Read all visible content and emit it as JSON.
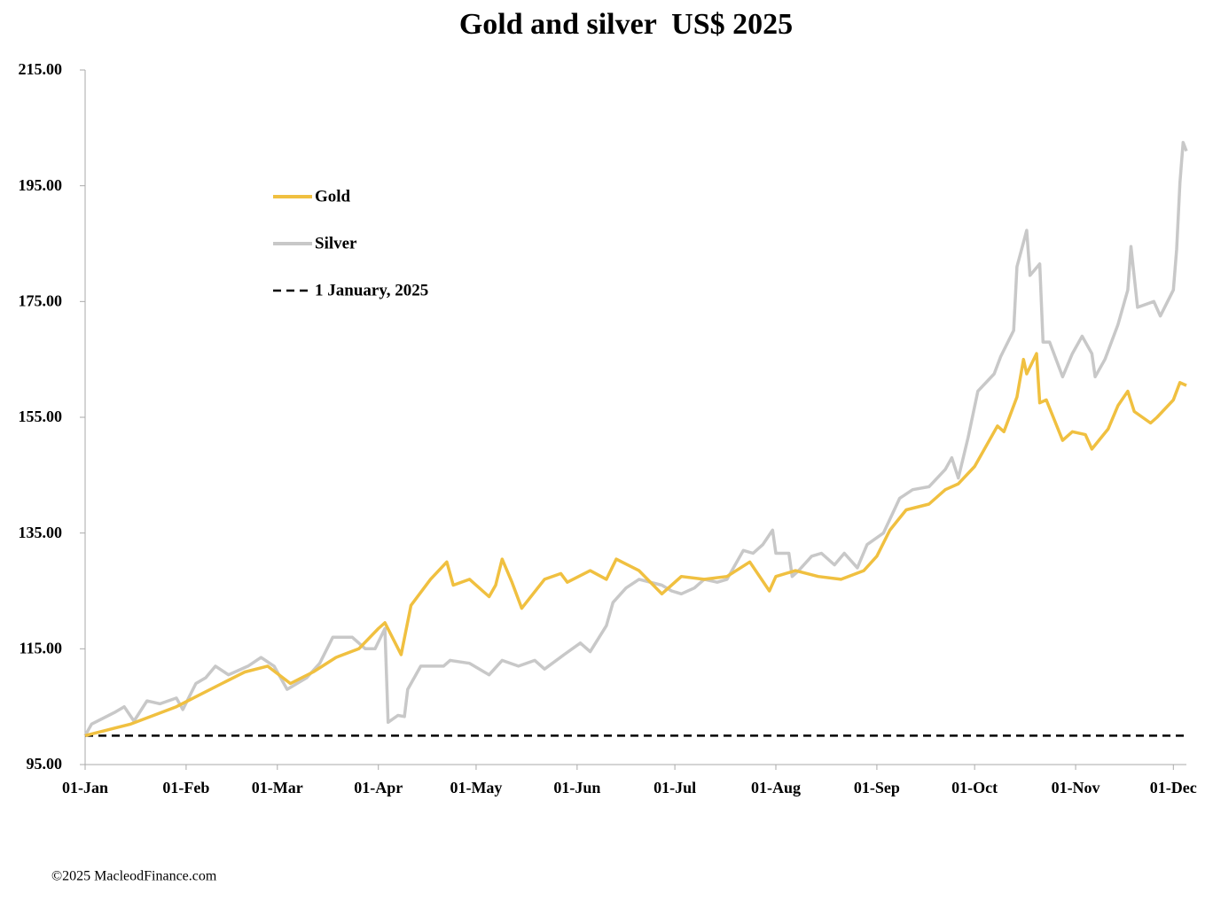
{
  "chart_data": {
    "type": "line",
    "title": "Gold and silver  US$ 2025",
    "footer": "©2025 MacleodFinance.com",
    "xlim": [
      "01-Jan",
      "05-Dec"
    ],
    "xticks": [
      "01-Jan",
      "01-Feb",
      "01-Mar",
      "01-Apr",
      "01-May",
      "01-Jun",
      "01-Jul",
      "01-Aug",
      "01-Sep",
      "01-Oct",
      "01-Nov",
      "01-Dec"
    ],
    "ylim": [
      95,
      215
    ],
    "yticks": [
      {
        "value": 95,
        "label": "95.00"
      },
      {
        "value": 115,
        "label": "115.00"
      },
      {
        "value": 135,
        "label": "135.00"
      },
      {
        "value": 155,
        "label": "155.00"
      },
      {
        "value": 175,
        "label": "175.00"
      },
      {
        "value": 195,
        "label": "195.00"
      },
      {
        "value": 215,
        "label": "215.00"
      }
    ],
    "reference_line": {
      "name": "1 January, 2025",
      "value": 100,
      "color": "#000000"
    },
    "series": [
      {
        "name": "Gold",
        "color": "#f0c040",
        "x": [
          "01-Jan",
          "08-Jan",
          "15-Jan",
          "22-Jan",
          "29-Jan",
          "05-Feb",
          "12-Feb",
          "19-Feb",
          "26-Feb",
          "05-Mar",
          "12-Mar",
          "19-Mar",
          "26-Mar",
          "01-Apr",
          "03-Apr",
          "08-Apr",
          "11-Apr",
          "17-Apr",
          "22-Apr",
          "24-Apr",
          "29-Apr",
          "05-May",
          "07-May",
          "09-May",
          "12-May",
          "15-May",
          "22-May",
          "27-May",
          "29-May",
          "05-Jun",
          "10-Jun",
          "13-Jun",
          "20-Jun",
          "27-Jun",
          "03-Jul",
          "10-Jul",
          "17-Jul",
          "24-Jul",
          "30-Jul",
          "01-Aug",
          "07-Aug",
          "14-Aug",
          "21-Aug",
          "28-Aug",
          "01-Sep",
          "05-Sep",
          "10-Sep",
          "17-Sep",
          "22-Sep",
          "26-Sep",
          "01-Oct",
          "08-Oct",
          "10-Oct",
          "14-Oct",
          "16-Oct",
          "17-Oct",
          "20-Oct",
          "21-Oct",
          "23-Oct",
          "28-Oct",
          "31-Oct",
          "04-Nov",
          "06-Nov",
          "11-Nov",
          "14-Nov",
          "17-Nov",
          "19-Nov",
          "24-Nov",
          "26-Nov",
          "01-Dec",
          "03-Dec",
          "05-Dec"
        ],
        "values": [
          100,
          101,
          102,
          103.5,
          105,
          107,
          109,
          111,
          112,
          109,
          111,
          113.5,
          115,
          118.5,
          119.5,
          114,
          122.5,
          127,
          130,
          126,
          127,
          124,
          126,
          130.5,
          126.5,
          122,
          127,
          128,
          126.5,
          128.5,
          127,
          130.5,
          128.5,
          124.5,
          127.5,
          127,
          127.5,
          130,
          125,
          127.5,
          128.5,
          127.5,
          127,
          128.5,
          131,
          135.5,
          139,
          140,
          142.5,
          143.5,
          146.5,
          153.5,
          152.5,
          158.5,
          165,
          162.5,
          166,
          157.5,
          158,
          151,
          152.5,
          152,
          149.5,
          153,
          157,
          159.5,
          156,
          154,
          155,
          158,
          161,
          160.5
        ]
      },
      {
        "name": "Silver",
        "color": "#c8c8c8",
        "x": [
          "01-Jan",
          "03-Jan",
          "10-Jan",
          "13-Jan",
          "16-Jan",
          "20-Jan",
          "24-Jan",
          "29-Jan",
          "31-Jan",
          "04-Feb",
          "07-Feb",
          "10-Feb",
          "14-Feb",
          "20-Feb",
          "24-Feb",
          "28-Feb",
          "04-Mar",
          "10-Mar",
          "14-Mar",
          "18-Mar",
          "24-Mar",
          "28-Mar",
          "31-Mar",
          "03-Apr",
          "04-Apr",
          "07-Apr",
          "09-Apr",
          "10-Apr",
          "14-Apr",
          "21-Apr",
          "23-Apr",
          "29-Apr",
          "05-May",
          "09-May",
          "14-May",
          "19-May",
          "22-May",
          "28-May",
          "02-Jun",
          "05-Jun",
          "10-Jun",
          "12-Jun",
          "16-Jun",
          "20-Jun",
          "27-Jun",
          "30-Jun",
          "03-Jul",
          "07-Jul",
          "10-Jul",
          "14-Jul",
          "17-Jul",
          "22-Jul",
          "25-Jul",
          "28-Jul",
          "31-Jul",
          "01-Aug",
          "05-Aug",
          "06-Aug",
          "08-Aug",
          "12-Aug",
          "15-Aug",
          "19-Aug",
          "22-Aug",
          "26-Aug",
          "29-Aug",
          "03-Sep",
          "08-Sep",
          "12-Sep",
          "17-Sep",
          "22-Sep",
          "24-Sep",
          "26-Sep",
          "29-Sep",
          "02-Oct",
          "07-Oct",
          "09-Oct",
          "13-Oct",
          "14-Oct",
          "17-Oct",
          "18-Oct",
          "21-Oct",
          "22-Oct",
          "24-Oct",
          "28-Oct",
          "31-Oct",
          "03-Nov",
          "06-Nov",
          "07-Nov",
          "10-Nov",
          "14-Nov",
          "17-Nov",
          "18-Nov",
          "20-Nov",
          "25-Nov",
          "27-Nov",
          "01-Dec",
          "02-Dec",
          "03-Dec",
          "04-Dec",
          "05-Dec"
        ],
        "values": [
          100,
          102,
          104,
          105,
          102.5,
          106,
          105.5,
          106.5,
          104.5,
          109,
          110,
          112,
          110.5,
          112,
          113.5,
          112,
          108,
          110,
          112.5,
          117,
          117,
          115,
          115,
          118.5,
          102.3,
          103.5,
          103.3,
          108,
          112,
          112,
          113,
          112.5,
          110.5,
          113,
          112,
          113,
          111.5,
          114,
          116,
          114.5,
          119,
          123,
          125.5,
          127,
          126,
          125,
          124.5,
          125.5,
          127,
          126.5,
          127,
          132,
          131.5,
          133,
          135.5,
          131.5,
          131.5,
          127.5,
          128.5,
          131,
          131.5,
          129.5,
          131.5,
          129,
          133,
          135,
          141,
          142.5,
          143,
          146,
          148,
          144.5,
          151.5,
          159.5,
          162.5,
          165.5,
          170,
          181,
          187.3,
          179.5,
          181.5,
          168,
          168,
          162,
          166,
          169,
          166,
          162,
          165,
          171,
          177,
          184.5,
          174,
          175,
          172.5,
          177,
          184,
          195.5,
          202.5,
          201
        ]
      }
    ]
  }
}
